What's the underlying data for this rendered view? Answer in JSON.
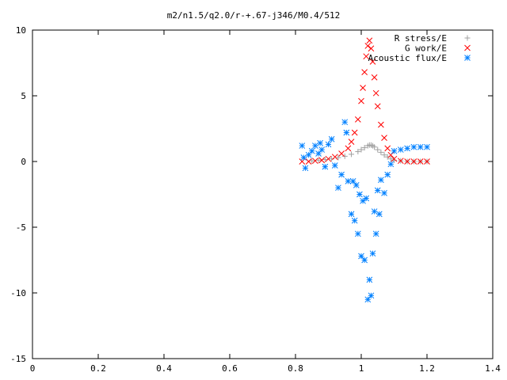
{
  "chart_data": {
    "type": "scatter",
    "title": "m2/n1.5/q2.0/r-+.67-j346/M0.4/512",
    "xlabel": "",
    "ylabel": "",
    "xlim": [
      0,
      1.4
    ],
    "ylim": [
      -15,
      10
    ],
    "x_ticks": [
      "0",
      "0.2",
      "0.4",
      "0.6",
      "0.8",
      "1",
      "1.2",
      "1.4"
    ],
    "y_ticks": [
      "10",
      "5",
      "0",
      "-5",
      "-10",
      "-15"
    ],
    "grid": false,
    "legend_position": "top-right",
    "series": [
      {
        "name": "R stress/E",
        "marker": "plus",
        "color": "#a0a0a0",
        "x": [
          0.85,
          0.87,
          0.89,
          0.91,
          0.93,
          0.95,
          0.97,
          0.99,
          1.0,
          1.01,
          1.02,
          1.025,
          1.03,
          1.035,
          1.04,
          1.05,
          1.06,
          1.07,
          1.08,
          1.09,
          1.1,
          1.12,
          1.14,
          1.16,
          1.18,
          1.2
        ],
        "y": [
          0.05,
          0.1,
          0.15,
          0.2,
          0.3,
          0.4,
          0.55,
          0.75,
          0.9,
          1.05,
          1.2,
          1.25,
          1.25,
          1.2,
          1.1,
          0.9,
          0.7,
          0.5,
          0.35,
          0.2,
          0.1,
          0.05,
          0.0,
          0.0,
          0.0,
          0.0
        ]
      },
      {
        "name": "G work/E",
        "marker": "cross",
        "color": "#ff0000",
        "x": [
          0.82,
          0.84,
          0.86,
          0.88,
          0.9,
          0.92,
          0.94,
          0.96,
          0.97,
          0.98,
          0.99,
          1.0,
          1.005,
          1.01,
          1.015,
          1.02,
          1.025,
          1.03,
          1.035,
          1.04,
          1.045,
          1.05,
          1.06,
          1.07,
          1.08,
          1.09,
          1.1,
          1.12,
          1.14,
          1.16,
          1.18,
          1.2
        ],
        "y": [
          0.0,
          0.0,
          0.05,
          0.1,
          0.2,
          0.35,
          0.6,
          1.0,
          1.5,
          2.2,
          3.2,
          4.6,
          5.6,
          6.8,
          8.0,
          8.8,
          9.2,
          8.6,
          7.6,
          6.4,
          5.2,
          4.2,
          2.8,
          1.8,
          1.0,
          0.5,
          0.2,
          0.05,
          0.0,
          0.0,
          0.0,
          0.0
        ]
      },
      {
        "name": "Acoustic flux/E",
        "marker": "star",
        "color": "#0080ff",
        "x": [
          0.82,
          0.825,
          0.83,
          0.84,
          0.85,
          0.86,
          0.87,
          0.875,
          0.88,
          0.89,
          0.9,
          0.91,
          0.92,
          0.93,
          0.94,
          0.95,
          0.955,
          0.96,
          0.97,
          0.975,
          0.98,
          0.985,
          0.99,
          0.995,
          1.0,
          1.005,
          1.01,
          1.015,
          1.02,
          1.025,
          1.03,
          1.035,
          1.04,
          1.045,
          1.05,
          1.055,
          1.06,
          1.07,
          1.08,
          1.09,
          1.1,
          1.12,
          1.14,
          1.16,
          1.18,
          1.2
        ],
        "y": [
          1.2,
          0.3,
          -0.5,
          0.5,
          0.8,
          1.2,
          0.6,
          1.4,
          0.9,
          -0.4,
          1.3,
          1.7,
          -0.3,
          -2.0,
          -1.0,
          3.0,
          2.2,
          -1.5,
          -4.0,
          -1.5,
          -4.5,
          -1.8,
          -5.5,
          -2.5,
          -7.2,
          -3.0,
          -7.5,
          -2.8,
          -10.5,
          -9.0,
          -10.2,
          -7.0,
          -3.8,
          -5.5,
          -2.2,
          -4.0,
          -1.4,
          -2.4,
          -1.0,
          -0.2,
          0.8,
          0.9,
          1.0,
          1.1,
          1.1,
          1.1
        ]
      }
    ]
  }
}
